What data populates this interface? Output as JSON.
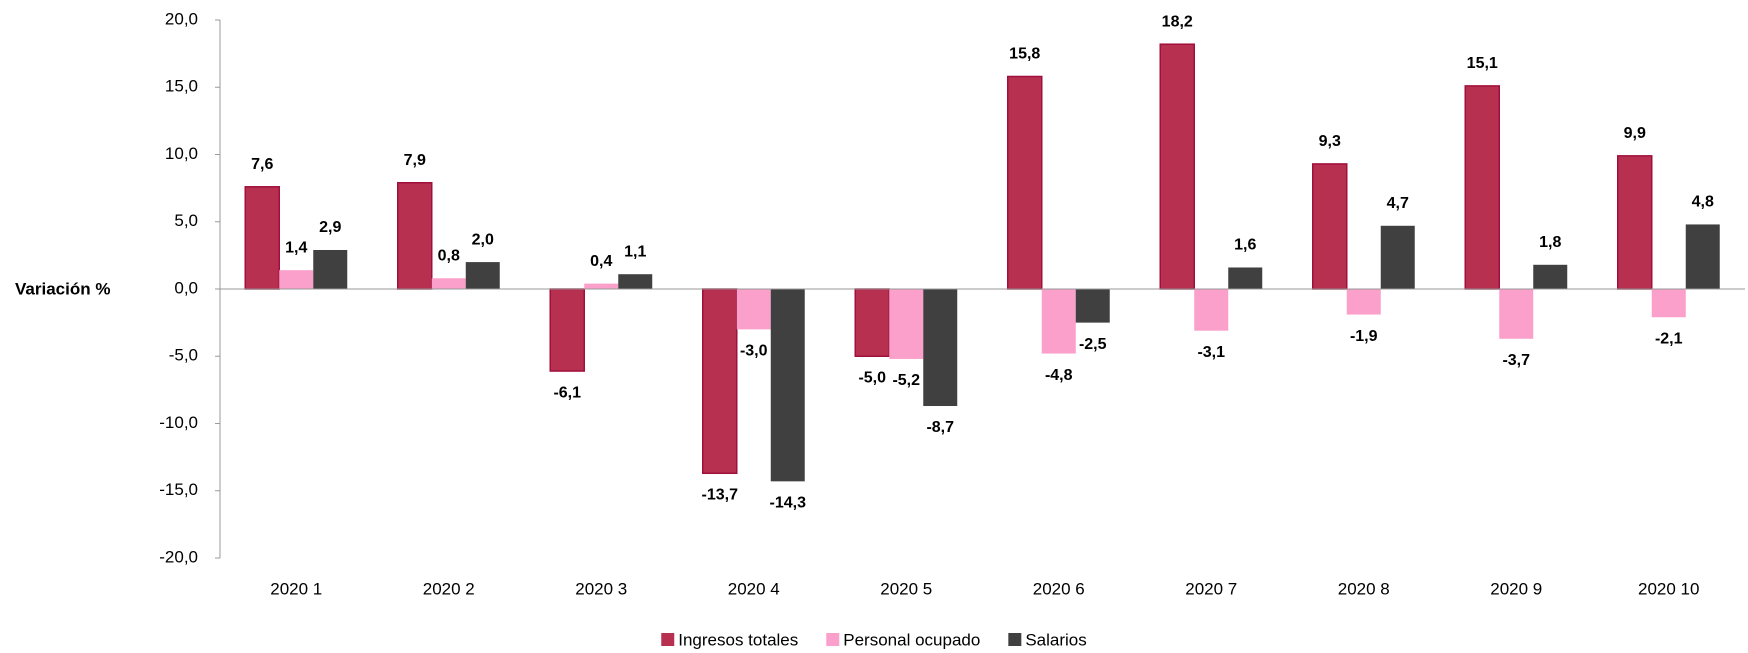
{
  "chart_data": {
    "type": "bar",
    "y_axis_label": "Variación %",
    "categories": [
      "2020 1",
      "2020 2",
      "2020 3",
      "2020 4",
      "2020 5",
      "2020 6",
      "2020 7",
      "2020 8",
      "2020 9",
      "2020 10"
    ],
    "series": [
      {
        "name": "Ingresos totales",
        "color": "#b8304f",
        "values": [
          7.6,
          7.9,
          -6.1,
          -13.7,
          -5.0,
          15.8,
          18.2,
          9.3,
          15.1,
          9.9
        ],
        "value_labels": [
          "7,6",
          "7,9",
          "-6,1",
          "-13,7",
          "-5,0",
          "15,8",
          "18,2",
          "9,3",
          "15,1",
          "9,9"
        ]
      },
      {
        "name": "Personal ocupado",
        "color": "#fb9fcb",
        "values": [
          1.4,
          0.8,
          0.4,
          -3.0,
          -5.2,
          -4.8,
          -3.1,
          -1.9,
          -3.7,
          -2.1
        ],
        "value_labels": [
          "1,4",
          "0,8",
          "0,4",
          "-3,0",
          "-5,2",
          "-4,8",
          "-3,1",
          "-1,9",
          "-3,7",
          "-2,1"
        ]
      },
      {
        "name": "Salarios",
        "color": "#404040",
        "values": [
          2.9,
          2.0,
          1.1,
          -14.3,
          -8.7,
          -2.5,
          1.6,
          4.7,
          1.8,
          4.8
        ],
        "value_labels": [
          "2,9",
          "2,0",
          "1,1",
          "-14,3",
          "-8,7",
          "-2,5",
          "1,6",
          "4,7",
          "1,8",
          "4,8"
        ]
      }
    ],
    "ylim": [
      -20,
      20
    ],
    "yticks": [
      {
        "value": -20,
        "label": "-20,0"
      },
      {
        "value": -15,
        "label": "-15,0"
      },
      {
        "value": -10,
        "label": "-10,0"
      },
      {
        "value": -5,
        "label": "-5,0"
      },
      {
        "value": 0,
        "label": "0,0"
      },
      {
        "value": 5,
        "label": "5,0"
      },
      {
        "value": 10,
        "label": "10,0"
      },
      {
        "value": 15,
        "label": "15,0"
      },
      {
        "value": 20,
        "label": "20,0"
      }
    ],
    "grid": false,
    "legend": "bottom"
  }
}
